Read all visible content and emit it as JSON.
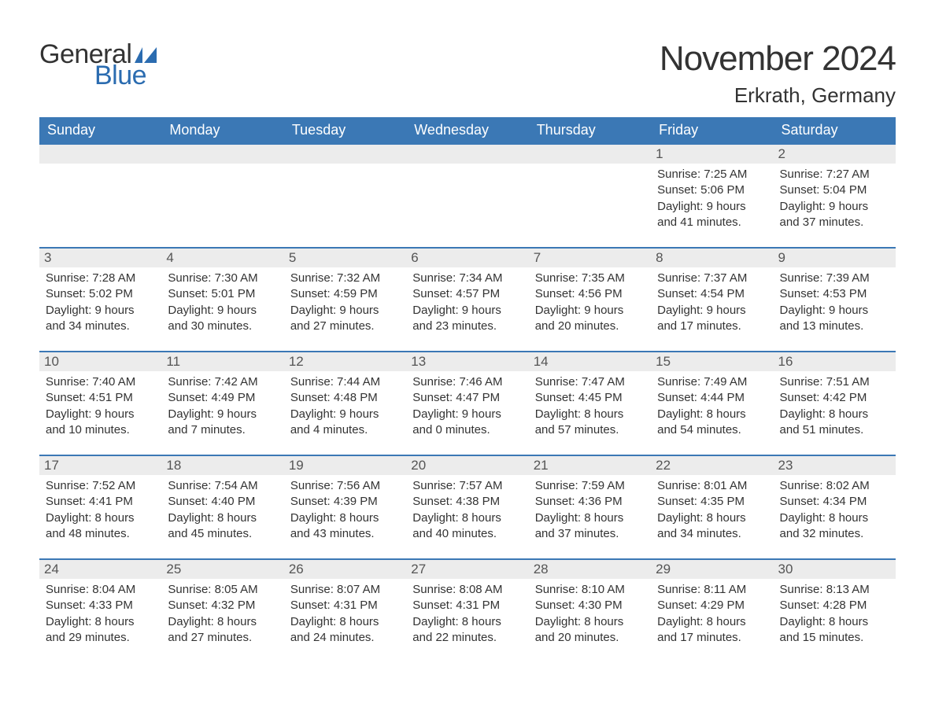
{
  "brand": {
    "general": "General",
    "blue": "Blue"
  },
  "title": "November 2024",
  "location": "Erkrath, Germany",
  "colors": {
    "header_bg": "#3b78b5",
    "header_text": "#ffffff",
    "row_border": "#3b78b5",
    "daynum_bg": "#ececec",
    "body_text": "#333333",
    "logo_blue": "#2b6cb0",
    "page_bg": "#ffffff"
  },
  "layout": {
    "type": "calendar",
    "columns": 7,
    "rows": 5,
    "first_weekday": "Sunday",
    "month_start_col": 5
  },
  "weekdays": [
    "Sunday",
    "Monday",
    "Tuesday",
    "Wednesday",
    "Thursday",
    "Friday",
    "Saturday"
  ],
  "weeks": [
    [
      {
        "day": "",
        "sunrise": "",
        "sunset": "",
        "daylight1": "",
        "daylight2": ""
      },
      {
        "day": "",
        "sunrise": "",
        "sunset": "",
        "daylight1": "",
        "daylight2": ""
      },
      {
        "day": "",
        "sunrise": "",
        "sunset": "",
        "daylight1": "",
        "daylight2": ""
      },
      {
        "day": "",
        "sunrise": "",
        "sunset": "",
        "daylight1": "",
        "daylight2": ""
      },
      {
        "day": "",
        "sunrise": "",
        "sunset": "",
        "daylight1": "",
        "daylight2": ""
      },
      {
        "day": "1",
        "sunrise": "Sunrise: 7:25 AM",
        "sunset": "Sunset: 5:06 PM",
        "daylight1": "Daylight: 9 hours",
        "daylight2": "and 41 minutes."
      },
      {
        "day": "2",
        "sunrise": "Sunrise: 7:27 AM",
        "sunset": "Sunset: 5:04 PM",
        "daylight1": "Daylight: 9 hours",
        "daylight2": "and 37 minutes."
      }
    ],
    [
      {
        "day": "3",
        "sunrise": "Sunrise: 7:28 AM",
        "sunset": "Sunset: 5:02 PM",
        "daylight1": "Daylight: 9 hours",
        "daylight2": "and 34 minutes."
      },
      {
        "day": "4",
        "sunrise": "Sunrise: 7:30 AM",
        "sunset": "Sunset: 5:01 PM",
        "daylight1": "Daylight: 9 hours",
        "daylight2": "and 30 minutes."
      },
      {
        "day": "5",
        "sunrise": "Sunrise: 7:32 AM",
        "sunset": "Sunset: 4:59 PM",
        "daylight1": "Daylight: 9 hours",
        "daylight2": "and 27 minutes."
      },
      {
        "day": "6",
        "sunrise": "Sunrise: 7:34 AM",
        "sunset": "Sunset: 4:57 PM",
        "daylight1": "Daylight: 9 hours",
        "daylight2": "and 23 minutes."
      },
      {
        "day": "7",
        "sunrise": "Sunrise: 7:35 AM",
        "sunset": "Sunset: 4:56 PM",
        "daylight1": "Daylight: 9 hours",
        "daylight2": "and 20 minutes."
      },
      {
        "day": "8",
        "sunrise": "Sunrise: 7:37 AM",
        "sunset": "Sunset: 4:54 PM",
        "daylight1": "Daylight: 9 hours",
        "daylight2": "and 17 minutes."
      },
      {
        "day": "9",
        "sunrise": "Sunrise: 7:39 AM",
        "sunset": "Sunset: 4:53 PM",
        "daylight1": "Daylight: 9 hours",
        "daylight2": "and 13 minutes."
      }
    ],
    [
      {
        "day": "10",
        "sunrise": "Sunrise: 7:40 AM",
        "sunset": "Sunset: 4:51 PM",
        "daylight1": "Daylight: 9 hours",
        "daylight2": "and 10 minutes."
      },
      {
        "day": "11",
        "sunrise": "Sunrise: 7:42 AM",
        "sunset": "Sunset: 4:49 PM",
        "daylight1": "Daylight: 9 hours",
        "daylight2": "and 7 minutes."
      },
      {
        "day": "12",
        "sunrise": "Sunrise: 7:44 AM",
        "sunset": "Sunset: 4:48 PM",
        "daylight1": "Daylight: 9 hours",
        "daylight2": "and 4 minutes."
      },
      {
        "day": "13",
        "sunrise": "Sunrise: 7:46 AM",
        "sunset": "Sunset: 4:47 PM",
        "daylight1": "Daylight: 9 hours",
        "daylight2": "and 0 minutes."
      },
      {
        "day": "14",
        "sunrise": "Sunrise: 7:47 AM",
        "sunset": "Sunset: 4:45 PM",
        "daylight1": "Daylight: 8 hours",
        "daylight2": "and 57 minutes."
      },
      {
        "day": "15",
        "sunrise": "Sunrise: 7:49 AM",
        "sunset": "Sunset: 4:44 PM",
        "daylight1": "Daylight: 8 hours",
        "daylight2": "and 54 minutes."
      },
      {
        "day": "16",
        "sunrise": "Sunrise: 7:51 AM",
        "sunset": "Sunset: 4:42 PM",
        "daylight1": "Daylight: 8 hours",
        "daylight2": "and 51 minutes."
      }
    ],
    [
      {
        "day": "17",
        "sunrise": "Sunrise: 7:52 AM",
        "sunset": "Sunset: 4:41 PM",
        "daylight1": "Daylight: 8 hours",
        "daylight2": "and 48 minutes."
      },
      {
        "day": "18",
        "sunrise": "Sunrise: 7:54 AM",
        "sunset": "Sunset: 4:40 PM",
        "daylight1": "Daylight: 8 hours",
        "daylight2": "and 45 minutes."
      },
      {
        "day": "19",
        "sunrise": "Sunrise: 7:56 AM",
        "sunset": "Sunset: 4:39 PM",
        "daylight1": "Daylight: 8 hours",
        "daylight2": "and 43 minutes."
      },
      {
        "day": "20",
        "sunrise": "Sunrise: 7:57 AM",
        "sunset": "Sunset: 4:38 PM",
        "daylight1": "Daylight: 8 hours",
        "daylight2": "and 40 minutes."
      },
      {
        "day": "21",
        "sunrise": "Sunrise: 7:59 AM",
        "sunset": "Sunset: 4:36 PM",
        "daylight1": "Daylight: 8 hours",
        "daylight2": "and 37 minutes."
      },
      {
        "day": "22",
        "sunrise": "Sunrise: 8:01 AM",
        "sunset": "Sunset: 4:35 PM",
        "daylight1": "Daylight: 8 hours",
        "daylight2": "and 34 minutes."
      },
      {
        "day": "23",
        "sunrise": "Sunrise: 8:02 AM",
        "sunset": "Sunset: 4:34 PM",
        "daylight1": "Daylight: 8 hours",
        "daylight2": "and 32 minutes."
      }
    ],
    [
      {
        "day": "24",
        "sunrise": "Sunrise: 8:04 AM",
        "sunset": "Sunset: 4:33 PM",
        "daylight1": "Daylight: 8 hours",
        "daylight2": "and 29 minutes."
      },
      {
        "day": "25",
        "sunrise": "Sunrise: 8:05 AM",
        "sunset": "Sunset: 4:32 PM",
        "daylight1": "Daylight: 8 hours",
        "daylight2": "and 27 minutes."
      },
      {
        "day": "26",
        "sunrise": "Sunrise: 8:07 AM",
        "sunset": "Sunset: 4:31 PM",
        "daylight1": "Daylight: 8 hours",
        "daylight2": "and 24 minutes."
      },
      {
        "day": "27",
        "sunrise": "Sunrise: 8:08 AM",
        "sunset": "Sunset: 4:31 PM",
        "daylight1": "Daylight: 8 hours",
        "daylight2": "and 22 minutes."
      },
      {
        "day": "28",
        "sunrise": "Sunrise: 8:10 AM",
        "sunset": "Sunset: 4:30 PM",
        "daylight1": "Daylight: 8 hours",
        "daylight2": "and 20 minutes."
      },
      {
        "day": "29",
        "sunrise": "Sunrise: 8:11 AM",
        "sunset": "Sunset: 4:29 PM",
        "daylight1": "Daylight: 8 hours",
        "daylight2": "and 17 minutes."
      },
      {
        "day": "30",
        "sunrise": "Sunrise: 8:13 AM",
        "sunset": "Sunset: 4:28 PM",
        "daylight1": "Daylight: 8 hours",
        "daylight2": "and 15 minutes."
      }
    ]
  ]
}
